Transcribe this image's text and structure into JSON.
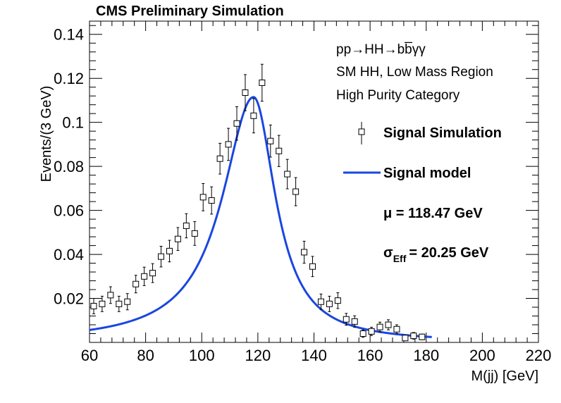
{
  "chart_data": {
    "type": "scatter",
    "title": "CMS Preliminary Simulation",
    "xlabel": "M(jj) [GeV]",
    "ylabel": "Events/(3 GeV)",
    "xlim": [
      60,
      220
    ],
    "ylim": [
      0,
      0.146
    ],
    "x_ticks": [
      "60",
      "80",
      "100",
      "120",
      "140",
      "160",
      "180",
      "200",
      "220"
    ],
    "y_ticks": [
      "0.02",
      "0.04",
      "0.06",
      "0.08",
      "0.1",
      "0.12",
      "0.14"
    ],
    "info_lines": [
      "pp→HH→bb̅γγ",
      "SM HH, Low Mass Region",
      "High Purity Category"
    ],
    "legend": {
      "data_label": "Signal Simulation",
      "model_label": "Signal model",
      "mu_text": "μ = 118.47 GeV",
      "sigma_symbol": "σ",
      "sigma_sub": "Eff",
      "sigma_value": "= 20.25 GeV"
    },
    "colors": {
      "model": "#1a46e0",
      "data": "#000000"
    },
    "model": {
      "mu": 118.47,
      "peak": 0.1115,
      "left_width": 13.5,
      "right_width": 9.5,
      "x_end": 182
    },
    "series": [
      {
        "name": "Signal Simulation",
        "points": [
          [
            61.5,
            0.0165,
            0.0035
          ],
          [
            64.5,
            0.0175,
            0.0035
          ],
          [
            67.5,
            0.0215,
            0.0038
          ],
          [
            70.5,
            0.0175,
            0.0035
          ],
          [
            73.5,
            0.0185,
            0.0037
          ],
          [
            76.5,
            0.0265,
            0.004
          ],
          [
            79.5,
            0.03,
            0.0042
          ],
          [
            82.5,
            0.0315,
            0.0043
          ],
          [
            85.5,
            0.039,
            0.0047
          ],
          [
            88.5,
            0.0415,
            0.0049
          ],
          [
            91.5,
            0.047,
            0.0052
          ],
          [
            94.5,
            0.053,
            0.0055
          ],
          [
            97.5,
            0.0495,
            0.0054
          ],
          [
            100.5,
            0.066,
            0.0062
          ],
          [
            103.5,
            0.0645,
            0.0062
          ],
          [
            106.5,
            0.0835,
            0.007
          ],
          [
            109.5,
            0.09,
            0.0073
          ],
          [
            112.5,
            0.0995,
            0.0076
          ],
          [
            115.5,
            0.1135,
            0.0082
          ],
          [
            118.5,
            0.103,
            0.0078
          ],
          [
            121.5,
            0.118,
            0.0084
          ],
          [
            124.5,
            0.0915,
            0.0073
          ],
          [
            127.5,
            0.087,
            0.0071
          ],
          [
            130.5,
            0.0765,
            0.0067
          ],
          [
            133.5,
            0.0685,
            0.0064
          ],
          [
            136.5,
            0.041,
            0.005
          ],
          [
            139.5,
            0.0345,
            0.0046
          ],
          [
            142.5,
            0.0185,
            0.0035
          ],
          [
            145.5,
            0.0175,
            0.0035
          ],
          [
            148.5,
            0.019,
            0.0036
          ],
          [
            151.5,
            0.0105,
            0.0027
          ],
          [
            154.5,
            0.0095,
            0.0026
          ],
          [
            157.5,
            0.004,
            0.0017
          ],
          [
            160.5,
            0.005,
            0.0019
          ],
          [
            163.5,
            0.007,
            0.0022
          ],
          [
            166.5,
            0.008,
            0.0023
          ],
          [
            169.5,
            0.006,
            0.002
          ],
          [
            172.5,
            0.002,
            0.0012
          ],
          [
            175.5,
            0.003,
            0.0015
          ],
          [
            178.5,
            0.0025,
            0.0013
          ]
        ]
      }
    ]
  }
}
